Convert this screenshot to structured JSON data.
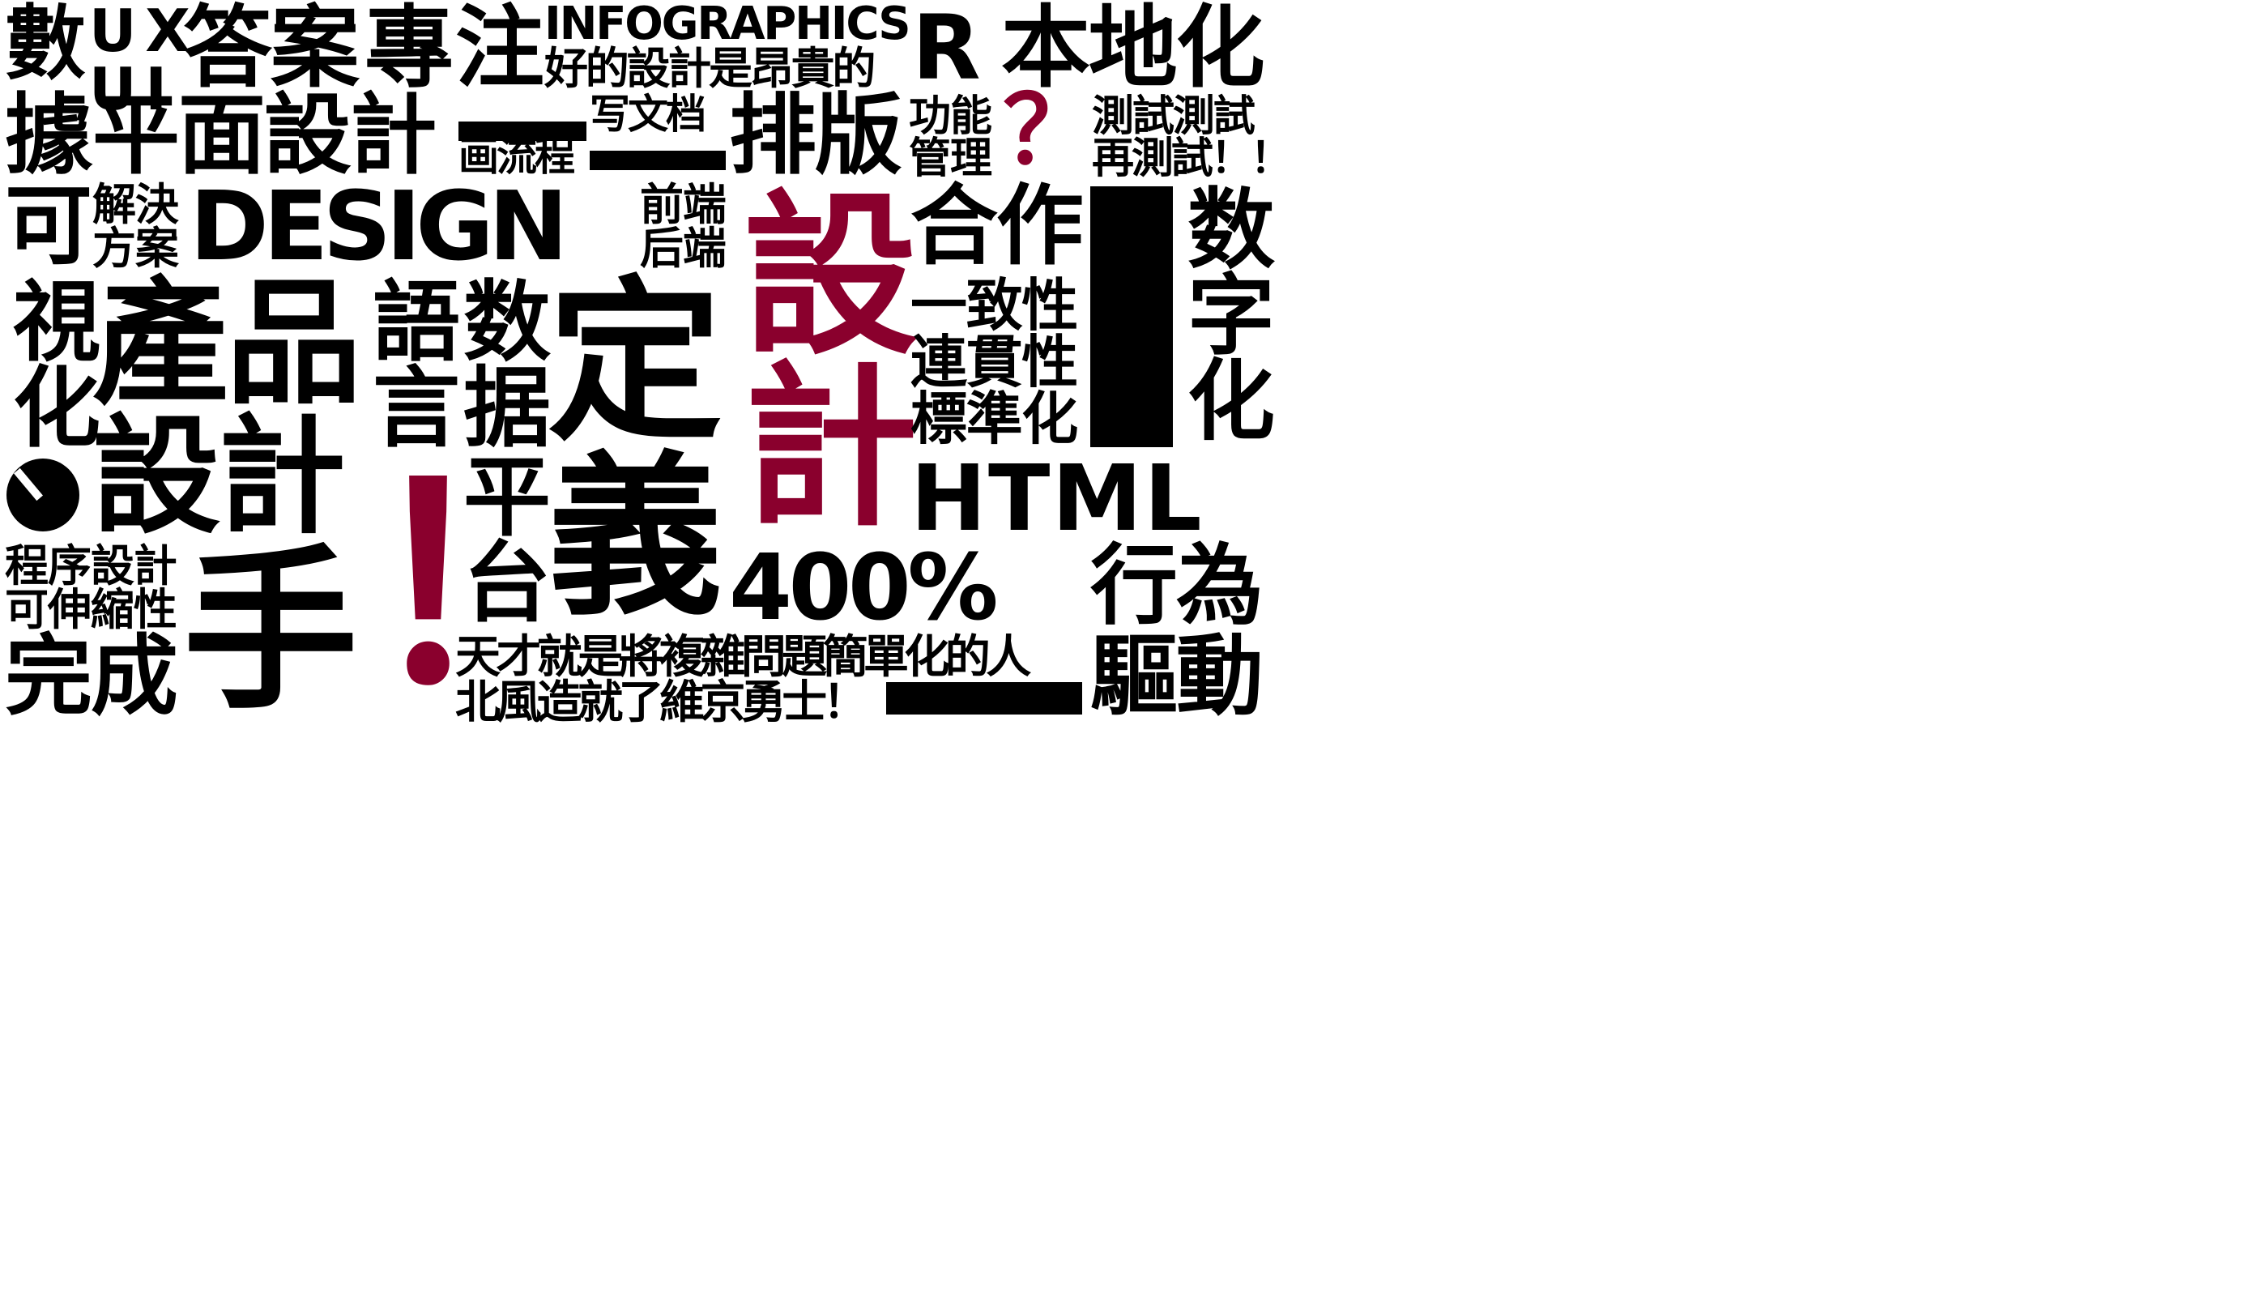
{
  "words": {
    "shu": "數",
    "ux": "UX",
    "ui": "UI",
    "daan": "答案",
    "zhuan": "專",
    "zhu": "注",
    "infographics": "INFOGRAPHICS",
    "haode": "好的設計是昂貴的",
    "r": "R",
    "bendihua": "本地化",
    "ju": "據",
    "pingmian": "平面設計",
    "xiewendang": "写文档",
    "hualiucheng": "画流程",
    "paiban": "排版",
    "gongneng": "功能",
    "guanli": "管理",
    "qmark": "？",
    "ceshi1": "測試測試",
    "ceshi2": "再測試！！",
    "ke": "可",
    "jiejue": "解決",
    "fangan": "方案",
    "design": "DESIGN",
    "qianduan": "前端",
    "houduan": "后端",
    "sheji_red": "設計",
    "hezuo": "合作",
    "shuzihua": "数字化",
    "shihua": "視化",
    "chanpin": "產品",
    "yuyan": "語言",
    "shuju": "数据",
    "ding": "定",
    "yizhixing": "一致性",
    "lianguanxing": "連貫性",
    "biaozhunhua": "標準化",
    "sheji_left": "設計",
    "exclaim": "！",
    "pingtai": "平台",
    "yi": "義",
    "html": "HTML",
    "chengxu": "程序設計",
    "keshen": "可伸縮性",
    "wancheng": "完成",
    "shou": "手",
    "pct": "400%",
    "xingwei": "行為",
    "tiancai": "天才就是將複雜問題簡單化的人",
    "beifeng": "北風造就了維京勇士！",
    "qudong": "驅動"
  },
  "colors": {
    "ink": "#000000",
    "accent": "#8a002d",
    "background": "#ffffff"
  }
}
